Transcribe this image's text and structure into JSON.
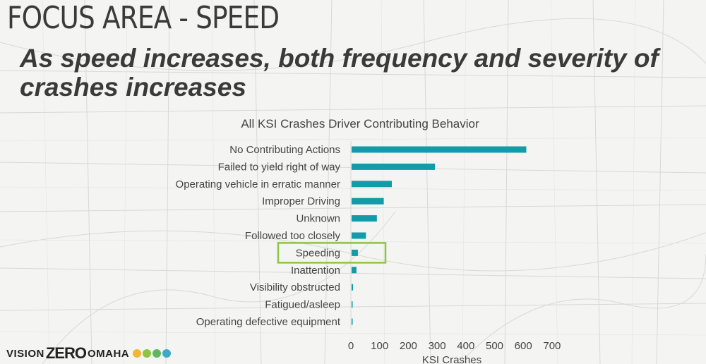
{
  "slide": {
    "header": "FOCUS AREA - SPEED",
    "headline": "As speed increases, both frequency and severity of crashes increases"
  },
  "brand": {
    "vision": "VISION",
    "zero": "ZERO",
    "omaha": "OMAHA",
    "icons": [
      "sun-icon",
      "bike-icon",
      "leaf-icon",
      "city-icon"
    ]
  },
  "colors": {
    "bar": "#129ba8",
    "highlight": "#8dc63f",
    "text": "#444444",
    "axis": "#d9d9d9"
  },
  "chart_data": {
    "type": "bar",
    "orientation": "horizontal",
    "title": "All KSI Crashes Driver Contributing Behavior",
    "xlabel": "KSI Crashes",
    "ylabel": "",
    "xlim": [
      0,
      700
    ],
    "xticks": [
      0,
      100,
      200,
      300,
      400,
      500,
      600,
      700
    ],
    "grid": false,
    "categories": [
      "No Contributing Actions",
      "Failed to yield right of way",
      "Operating vehicle in erratic manner",
      "Improper Driving",
      "Unknown",
      "Followed too closely",
      "Speeding",
      "Inattention",
      "Visibility obstructed",
      "Fatigued/asleep",
      "Operating defective equipment"
    ],
    "values": [
      608,
      290,
      140,
      112,
      88,
      50,
      22,
      17,
      5,
      3,
      3
    ],
    "highlighted_category": "Speeding"
  }
}
